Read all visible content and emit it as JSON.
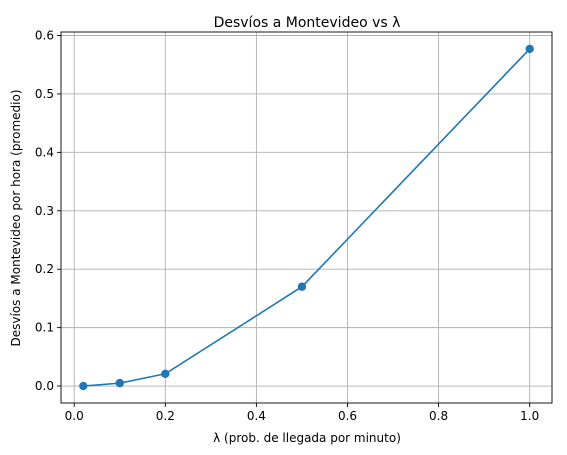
{
  "chart_data": {
    "type": "line",
    "title": "Desvíos a Montevideo vs λ",
    "xlabel": "λ (prob. de llegada por minuto)",
    "ylabel": "Desvíos a Montevideo por hora (promedio)",
    "x": [
      0.02,
      0.1,
      0.2,
      0.5,
      1.0
    ],
    "series": [
      {
        "values": [
          0.0,
          0.005,
          0.021,
          0.17,
          0.577
        ]
      }
    ],
    "xlim": [
      -0.029,
      1.049
    ],
    "ylim": [
      -0.029,
      0.606
    ],
    "xticks": [
      0.0,
      0.2,
      0.4,
      0.6,
      0.8,
      1.0
    ],
    "xtick_labels": [
      "0.0",
      "0.2",
      "0.4",
      "0.6",
      "0.8",
      "1.0"
    ],
    "yticks": [
      0.0,
      0.1,
      0.2,
      0.3,
      0.4,
      0.5,
      0.6
    ],
    "ytick_labels": [
      "0.0",
      "0.1",
      "0.2",
      "0.3",
      "0.4",
      "0.5",
      "0.6"
    ],
    "grid": true,
    "marker": "circle",
    "line_color": "#1f77b4",
    "grid_color": "#b0b0b0"
  }
}
